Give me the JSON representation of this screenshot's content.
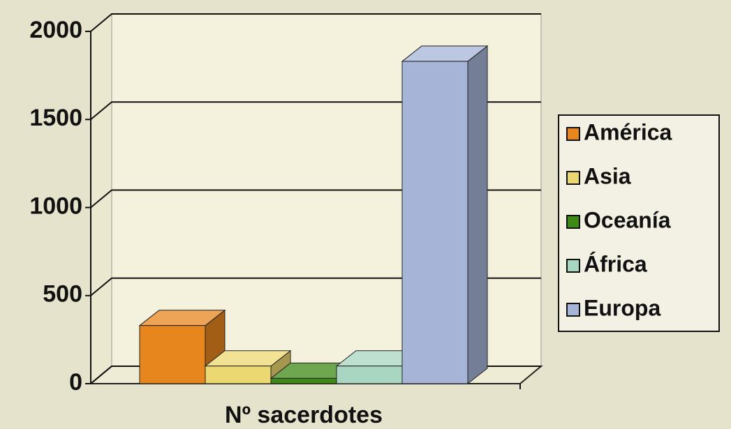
{
  "chart_data": {
    "type": "bar3d",
    "categories": [
      "Nº sacerdotes"
    ],
    "series": [
      {
        "name": "América",
        "color": "#e8861e",
        "values": [
          330
        ]
      },
      {
        "name": "Asia",
        "color": "#ecd870",
        "values": [
          100
        ]
      },
      {
        "name": "Oceanía",
        "color": "#3f8a16",
        "values": [
          30
        ]
      },
      {
        "name": "África",
        "color": "#a8d6c0",
        "values": [
          100
        ]
      },
      {
        "name": "Europa",
        "color": "#a6b4d8",
        "values": [
          1830
        ]
      }
    ],
    "ylim": [
      0,
      2000
    ],
    "yticks": [
      0,
      500,
      1000,
      1500,
      2000
    ],
    "grid": true,
    "legend": "right"
  }
}
